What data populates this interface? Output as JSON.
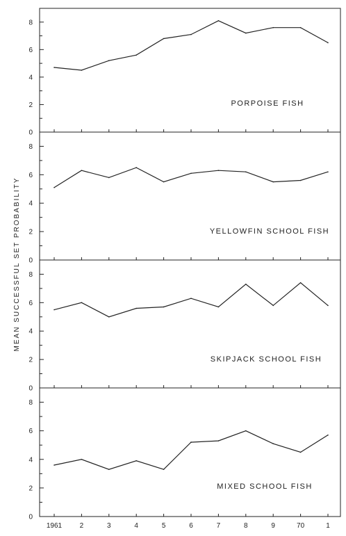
{
  "chart_data": {
    "type": "line",
    "ylabel": "MEAN SUCCESSFUL SET PROBABILITY",
    "categories": [
      "1961",
      "2",
      "3",
      "4",
      "5",
      "6",
      "7",
      "8",
      "9",
      "70",
      "1"
    ],
    "ylim": [
      0,
      9
    ],
    "yticks": [
      "0",
      "2",
      "4",
      "6",
      "8"
    ],
    "grid": false,
    "panels": [
      {
        "title": "PORPOISE FISH",
        "values": [
          4.7,
          4.5,
          5.2,
          5.6,
          6.8,
          7.1,
          8.1,
          7.2,
          7.6,
          7.6,
          6.5
        ]
      },
      {
        "title": "YELLOWFIN SCHOOL FISH",
        "values": [
          5.1,
          6.3,
          5.8,
          6.5,
          5.5,
          6.1,
          6.3,
          6.2,
          5.5,
          5.6,
          6.2
        ]
      },
      {
        "title": "SKIPJACK SCHOOL FISH",
        "values": [
          5.5,
          6.0,
          5.0,
          5.6,
          5.7,
          6.3,
          5.7,
          7.3,
          5.8,
          7.4,
          5.8
        ]
      },
      {
        "title": "MIXED SCHOOL FISH",
        "values": [
          3.6,
          4.0,
          3.3,
          3.9,
          3.3,
          5.2,
          5.3,
          6.0,
          5.1,
          4.5,
          5.7
        ]
      }
    ]
  }
}
